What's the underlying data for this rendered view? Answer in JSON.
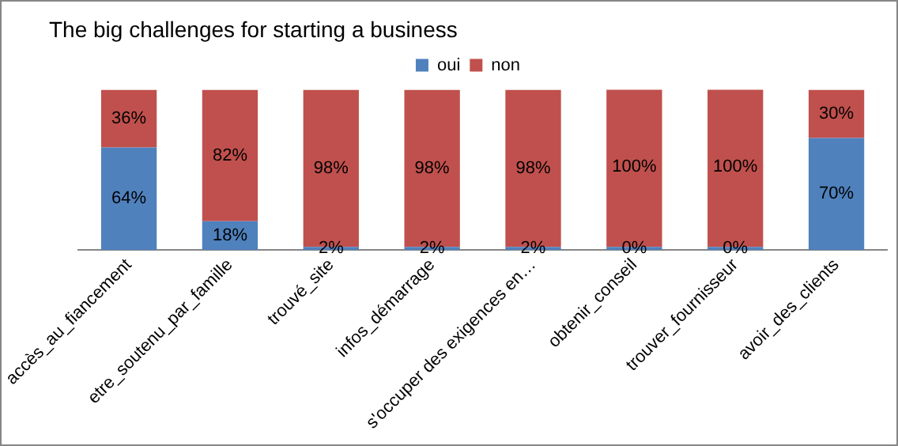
{
  "chart_data": {
    "type": "bar",
    "title": "The big challenges for starting a business",
    "stacked": true,
    "legend": "top",
    "ylim": [
      0,
      100
    ],
    "tick_labels": "x",
    "categories": [
      "accès_au_fiancement",
      "etre_soutenu_par_famille",
      "trouvé_site",
      "infos_démarrage",
      "s'occuper des exigences en…",
      "obtenir_conseil",
      "trouver_fournisseur",
      "avoir_des_clients"
    ],
    "series": [
      {
        "name": "oui",
        "color": "#4f81bd",
        "values": [
          64,
          18,
          2,
          2,
          2,
          0,
          0,
          70
        ],
        "value_labels": [
          "64%",
          "18%",
          "2%",
          "2%",
          "2%",
          "0%",
          "0%",
          "70%"
        ]
      },
      {
        "name": "non",
        "color": "#c0504d",
        "values": [
          36,
          82,
          98,
          98,
          98,
          100,
          100,
          30
        ],
        "value_labels": [
          "36%",
          "82%",
          "98%",
          "98%",
          "98%",
          "100%",
          "100%",
          "30%"
        ]
      }
    ]
  }
}
